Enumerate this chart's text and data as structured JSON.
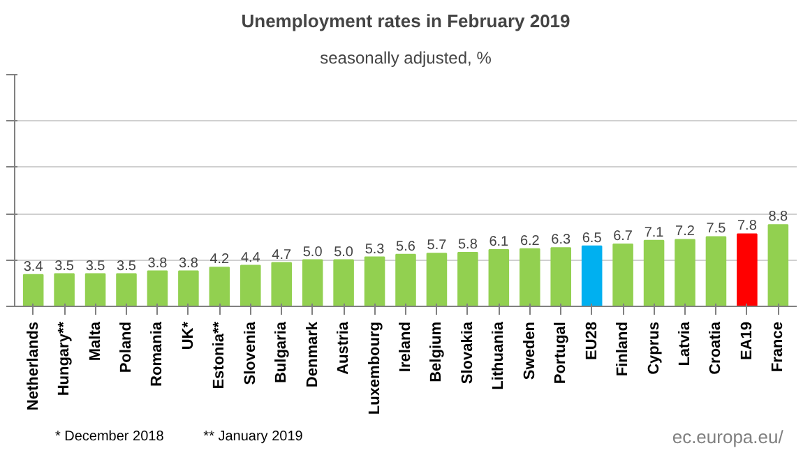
{
  "chart_data": {
    "type": "bar",
    "title": "Unemployment rates in February 2019",
    "subtitle": "seasonally adjusted, %",
    "categories": [
      "Netherlands",
      "Hungary**",
      "Malta",
      "Poland",
      "Romania",
      "UK*",
      "Estonia**",
      "Slovenia",
      "Bulgaria",
      "Denmark",
      "Austria",
      "Luxembourg",
      "Ireland",
      "Belgium",
      "Slovakia",
      "Lithuania",
      "Sweden",
      "Portugal",
      "EU28",
      "Finland",
      "Cyprus",
      "Latvia",
      "Croatia",
      "EA19",
      "France"
    ],
    "values": [
      3.4,
      3.5,
      3.5,
      3.5,
      3.8,
      3.8,
      4.2,
      4.4,
      4.7,
      5.0,
      5.0,
      5.3,
      5.6,
      5.7,
      5.8,
      6.1,
      6.2,
      6.3,
      6.5,
      6.7,
      7.1,
      7.2,
      7.5,
      7.8,
      8.8
    ],
    "value_labels": [
      "3.4",
      "3.5",
      "3.5",
      "3.5",
      "3.8",
      "3.8",
      "4.2",
      "4.4",
      "4.7",
      "5.0",
      "5.0",
      "5.3",
      "5.6",
      "5.7",
      "5.8",
      "6.1",
      "6.2",
      "6.3",
      "6.5",
      "6.7",
      "7.1",
      "7.2",
      "7.5",
      "7.8",
      "8.8"
    ],
    "colors": [
      "#92d050",
      "#92d050",
      "#92d050",
      "#92d050",
      "#92d050",
      "#92d050",
      "#92d050",
      "#92d050",
      "#92d050",
      "#92d050",
      "#92d050",
      "#92d050",
      "#92d050",
      "#92d050",
      "#92d050",
      "#92d050",
      "#92d050",
      "#92d050",
      "#00b0f0",
      "#92d050",
      "#92d050",
      "#92d050",
      "#92d050",
      "#ff0000",
      "#92d050"
    ],
    "ylim": [
      0,
      25
    ],
    "yticks": [
      {
        "value": 0,
        "label": null
      },
      {
        "value": 5,
        "label": null
      },
      {
        "value": 10,
        "label": null
      },
      {
        "value": 15,
        "label": null
      },
      {
        "value": 20,
        "label": null
      },
      {
        "value": 25,
        "label": null
      }
    ],
    "tick_labels": "x",
    "grid": "y",
    "annotations": [
      "*  December 2018",
      "** January 2019",
      "ec.europa.eu/"
    ]
  }
}
